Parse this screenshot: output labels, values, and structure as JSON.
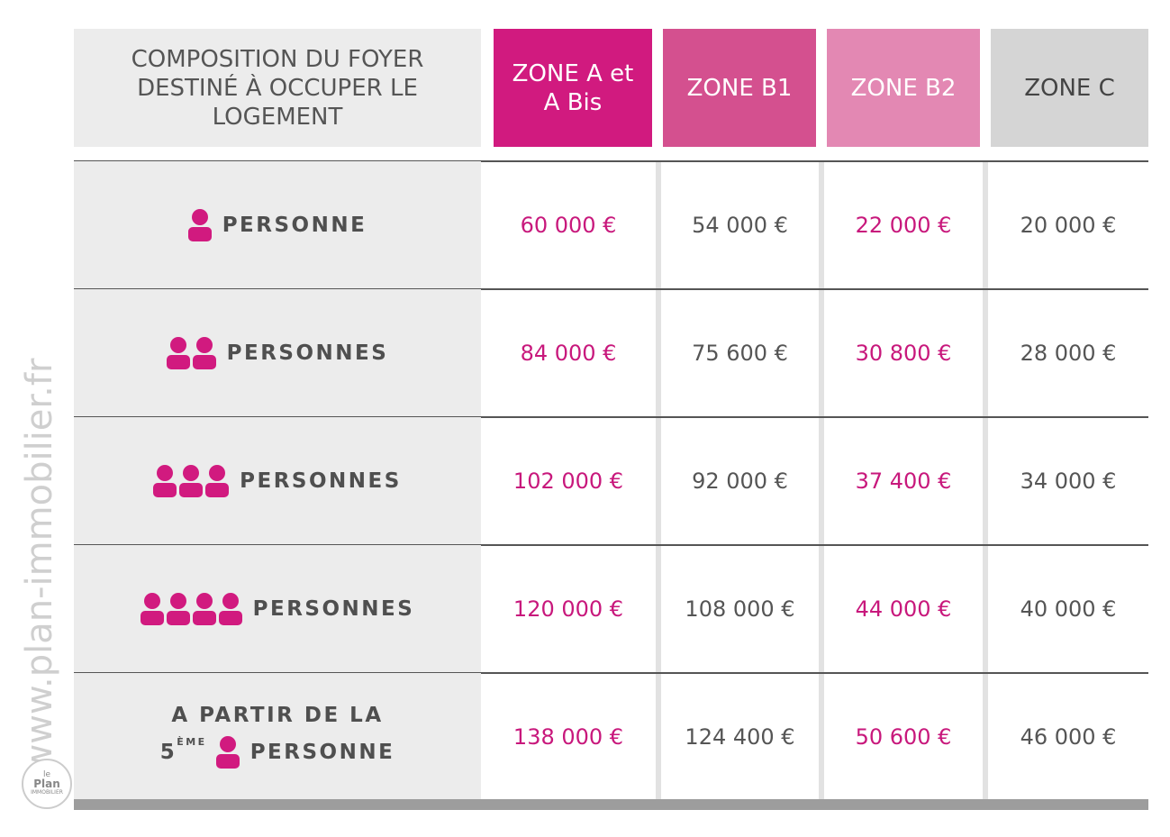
{
  "header": {
    "label": "COMPOSITION DU FOYER DESTINÉ À OCCUPER LE LOGEMENT",
    "zones": [
      "ZONE A et A Bis",
      "ZONE B1",
      "ZONE B2",
      "ZONE C"
    ]
  },
  "rows": [
    {
      "label": "PERSONNE",
      "values": [
        "60 000 €",
        "54 000 €",
        "22 000 €",
        "20 000 €"
      ]
    },
    {
      "label": "PERSONNES",
      "values": [
        "84 000 €",
        "75 600 €",
        "30 800 €",
        "28 000 €"
      ]
    },
    {
      "label": "PERSONNES",
      "values": [
        "102 000 €",
        "92 000 €",
        "37 400 €",
        "34 000 €"
      ]
    },
    {
      "label": "PERSONNES",
      "values": [
        "120 000 €",
        "108 000 €",
        "44 000 €",
        "40 000 €"
      ]
    },
    {
      "label_line1": "A PARTIR DE LA",
      "ordinal": "5",
      "ordinal_suffix": "ÈME",
      "label": "PERSONNE",
      "values": [
        "138 000 €",
        "124 400 €",
        "50 600 €",
        "46 000 €"
      ]
    }
  ],
  "watermark": "www.plan-immobilier.fr",
  "logo": {
    "line1": "le",
    "line2": "Plan",
    "line3": "IMMOBILIER"
  }
}
